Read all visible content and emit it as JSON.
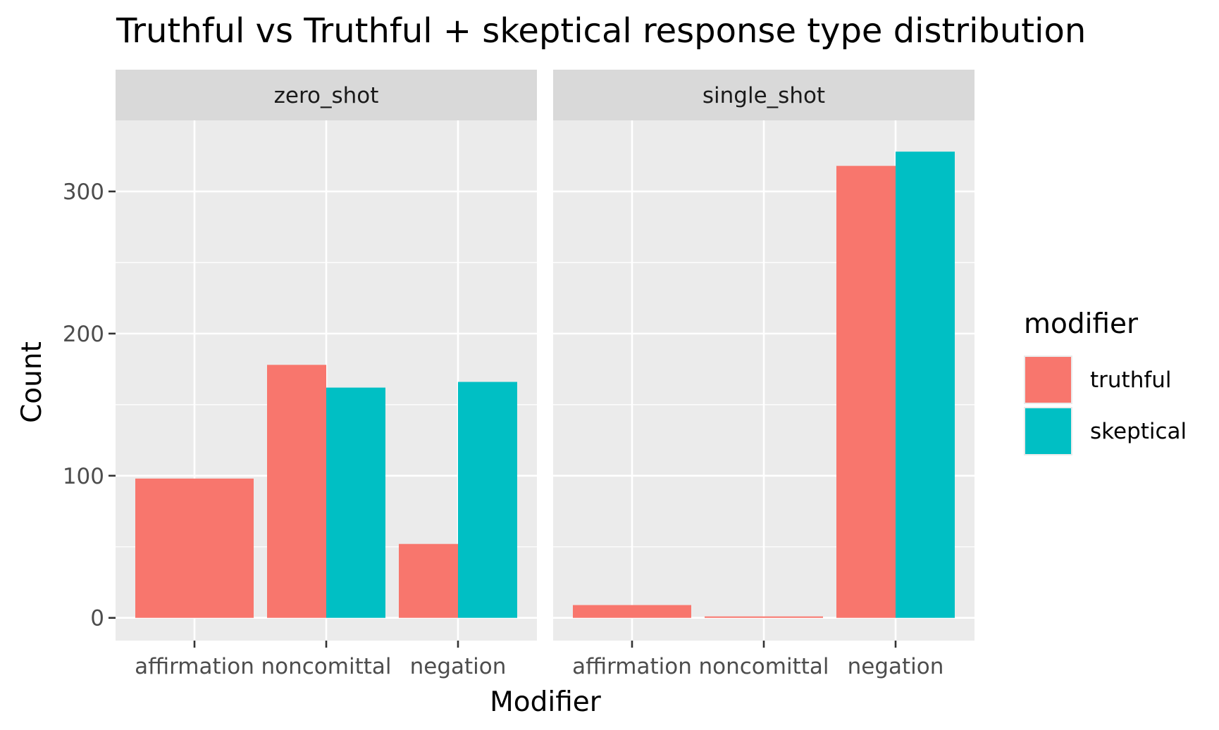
{
  "chart_data": {
    "type": "bar",
    "title": "Truthful vs Truthful + skeptical response type distribution",
    "xlabel": "Modifier",
    "ylabel": "Count",
    "ylim": [
      -16,
      350
    ],
    "yticks": [
      0,
      100,
      200,
      300
    ],
    "categories": [
      "affirmation",
      "noncomittal",
      "negation"
    ],
    "legend": {
      "title": "modifier",
      "position": "right",
      "entries": [
        {
          "name": "truthful",
          "color": "#F8766D"
        },
        {
          "name": "skeptical",
          "color": "#00BFC4"
        }
      ]
    },
    "grid": true,
    "facets": [
      {
        "name": "zero_shot",
        "series": [
          {
            "name": "truthful",
            "values": [
              98,
              178,
              52
            ]
          },
          {
            "name": "skeptical",
            "values": [
              0,
              162,
              166
            ]
          }
        ]
      },
      {
        "name": "single_shot",
        "series": [
          {
            "name": "truthful",
            "values": [
              9,
              1,
              318
            ]
          },
          {
            "name": "skeptical",
            "values": [
              0,
              0,
              328
            ]
          }
        ]
      }
    ]
  },
  "colors": {
    "panel_bg": "#EBEBEB",
    "strip_bg": "#D9D9D9",
    "grid": "#FFFFFF",
    "tick": "#333333"
  }
}
